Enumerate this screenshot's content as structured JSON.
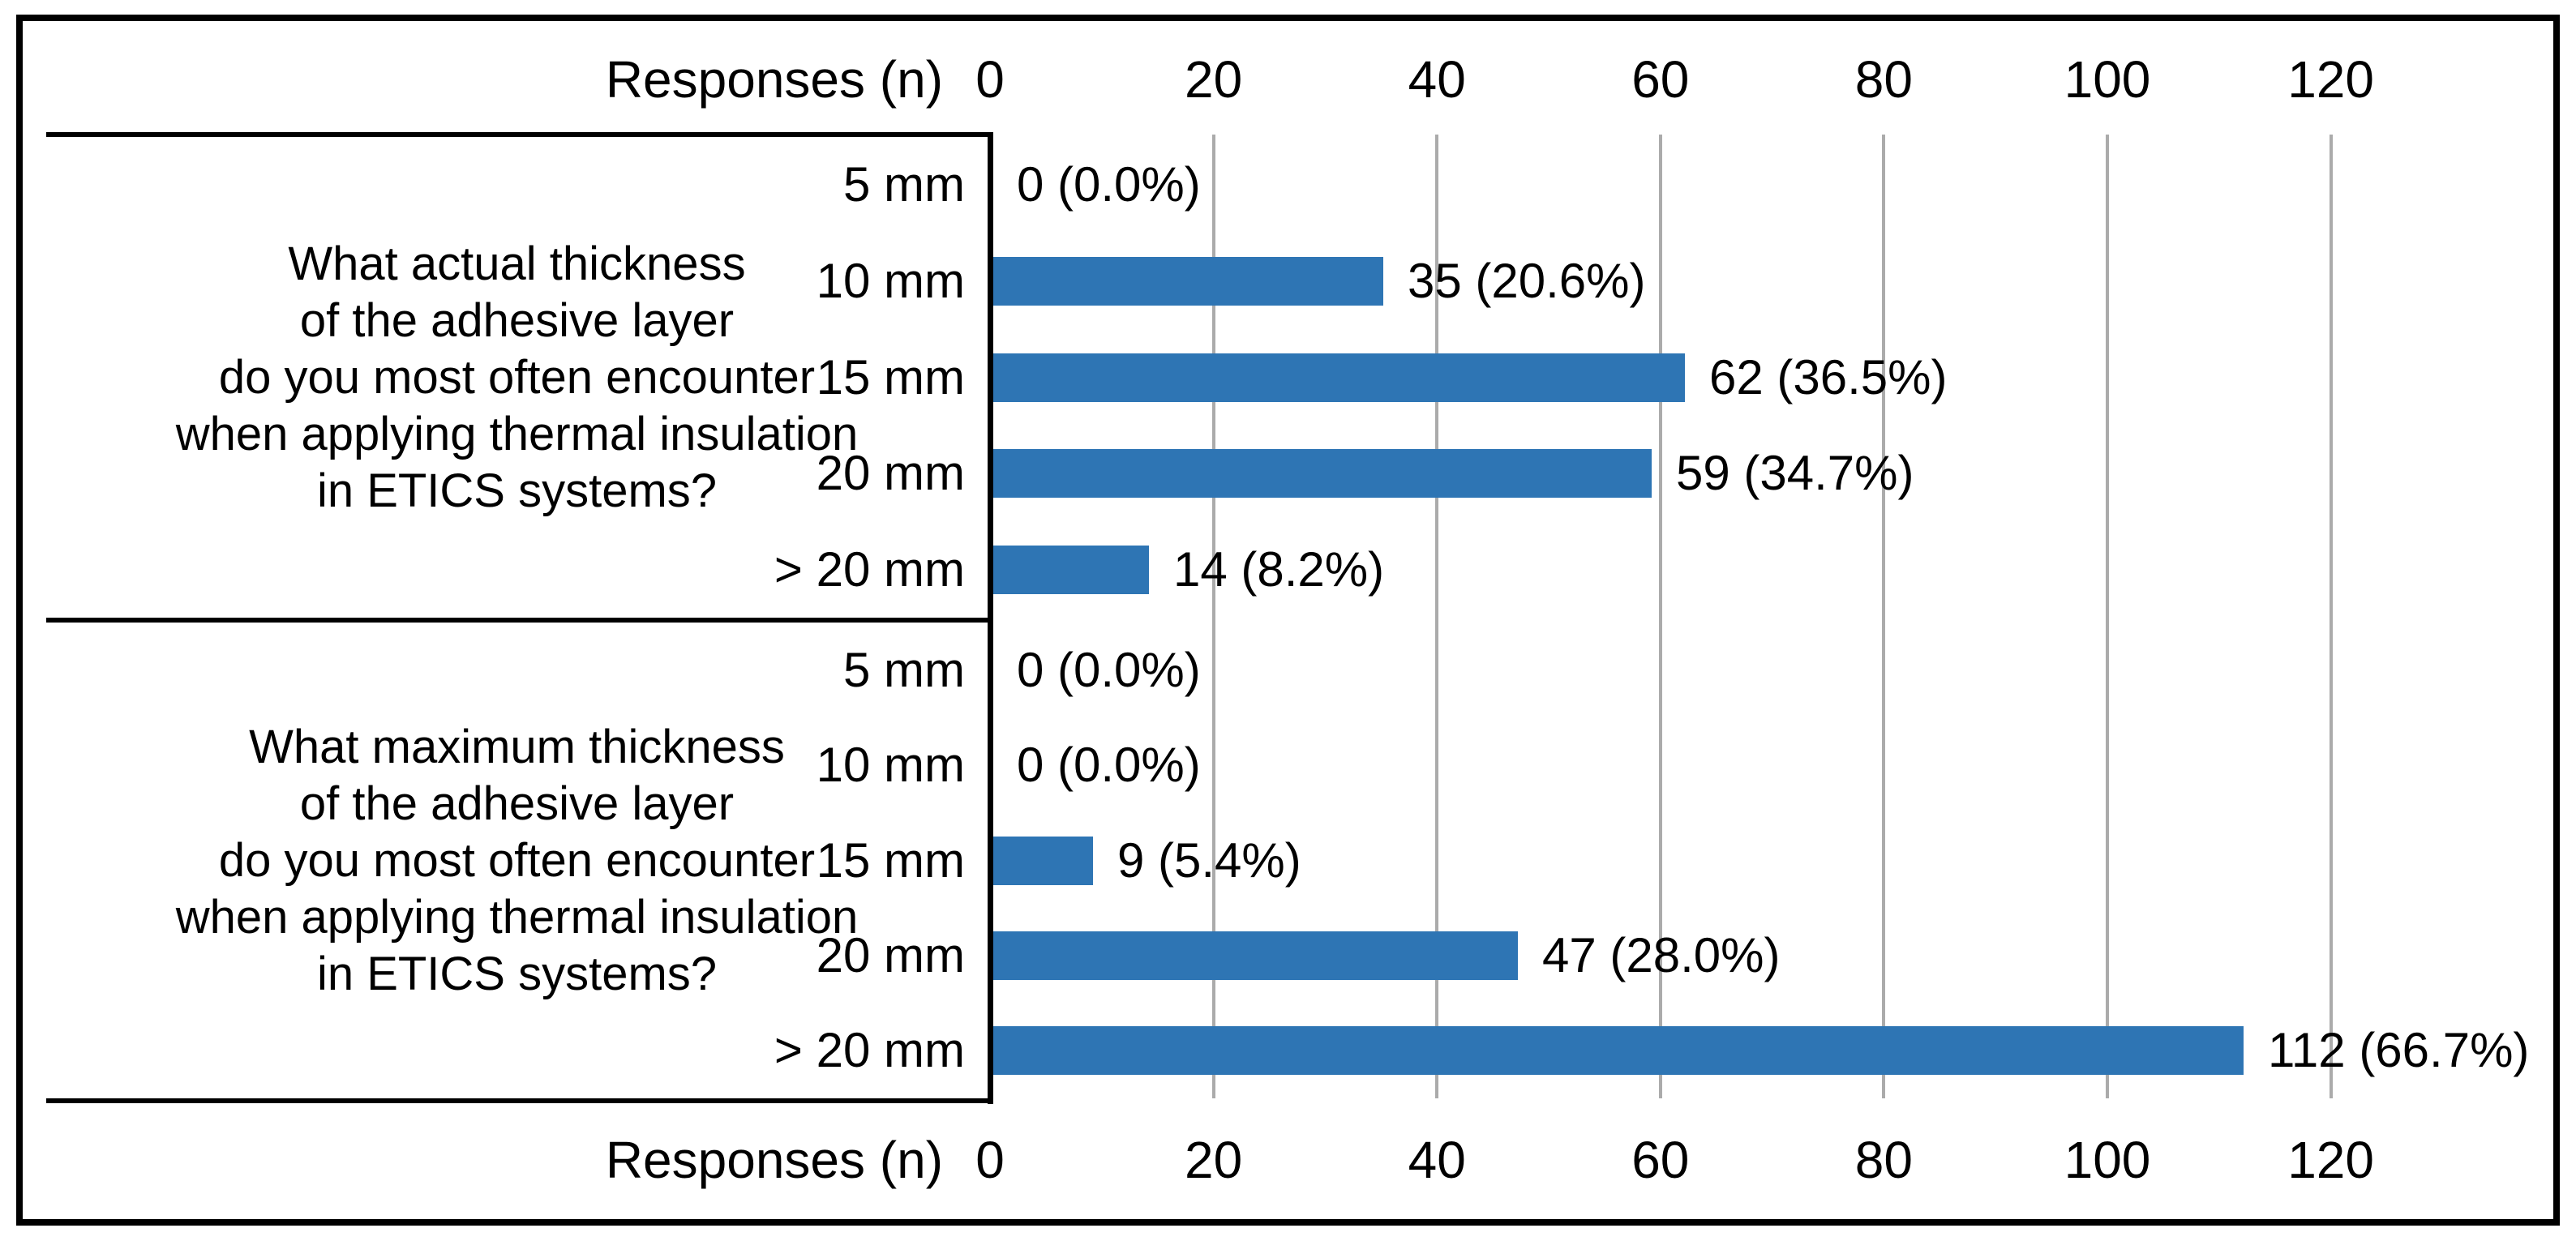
{
  "chart_data": {
    "type": "bar",
    "orientation": "horizontal",
    "title": "",
    "axis_title": "Responses (n)",
    "x_ticks": [
      0,
      20,
      40,
      60,
      80,
      100,
      120
    ],
    "xlim": [
      0,
      133
    ],
    "grid": true,
    "legend_position": "none",
    "categories": [
      "5 mm",
      "10 mm",
      "15 mm",
      "20 mm",
      "> 20 mm"
    ],
    "series": [
      {
        "name": "What actual thickness of the adhesive layer do you most often encounter when applying thermal insulation in ETICS systems?",
        "question_lines": [
          "What actual thickness",
          "of the adhesive layer",
          "do you most often encounter",
          "when applying thermal insulation",
          "in ETICS systems?"
        ],
        "values": [
          0,
          35,
          62,
          59,
          14
        ],
        "data_labels": [
          "0 (0.0%)",
          "35 (20.6%)",
          "62 (36.5%)",
          "59 (34.7%)",
          "14 (8.2%)"
        ]
      },
      {
        "name": "What maximum thickness of the adhesive layer do you most often encounter when applying thermal insulation in ETICS systems?",
        "question_lines": [
          "What maximum thickness",
          "of the adhesive layer",
          "do you most often encounter",
          "when applying thermal insulation",
          "in ETICS systems?"
        ],
        "values": [
          0,
          0,
          9,
          47,
          112
        ],
        "data_labels": [
          "0 (0.0%)",
          "0 (0.0%)",
          "9 (5.4%)",
          "47 (28.0%)",
          "112 (66.7%)"
        ]
      }
    ],
    "colors": {
      "bar": "#2E75B4",
      "gridline": "#ABABAB",
      "rule": "#000000",
      "text": "#000000",
      "background": "#FFFFFF"
    }
  }
}
